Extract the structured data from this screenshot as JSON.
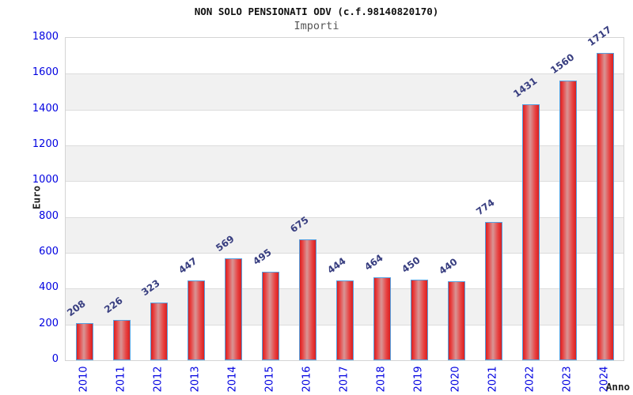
{
  "chart_data": {
    "type": "bar",
    "title": "NON SOLO PENSIONATI ODV (c.f.98140820170)",
    "subtitle": "Importi",
    "ylabel": "Euro",
    "xlabel": "Anno",
    "categories": [
      "2010",
      "2011",
      "2012",
      "2013",
      "2014",
      "2015",
      "2016",
      "2017",
      "2018",
      "2019",
      "2020",
      "2021",
      "2022",
      "2023",
      "2024"
    ],
    "values": [
      208,
      226,
      323,
      447,
      569,
      495,
      675,
      444,
      464,
      450,
      440,
      774,
      1431,
      1560,
      1717
    ],
    "ylim": [
      0,
      1800
    ],
    "ytick_step": 200,
    "grid": "horizontal-bands-alternating",
    "legend_position": "none",
    "colors": {
      "bar_fill_edge": "#d92020",
      "bar_fill_highlight": "#d89595",
      "bar_border": "#55a0e0",
      "axis_tick_label": "#0000e0",
      "value_label": "#383e80",
      "band_gray": "#f1f1f1",
      "gridline": "#dcdcdc",
      "plot_border": "#d4d4d4",
      "title": "#111111",
      "subtitle": "#555555",
      "axis_title": "#222222",
      "background": "#ffffff"
    }
  }
}
